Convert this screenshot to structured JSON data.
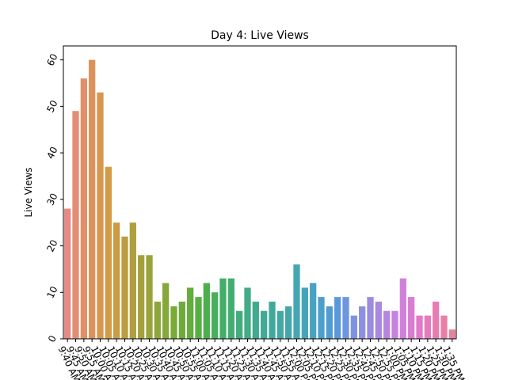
{
  "chart_data": {
    "type": "bar",
    "title": "Day 4: Live Views",
    "xlabel": "",
    "ylabel": "Live Views",
    "ylim": [
      0,
      63
    ],
    "yticks": [
      0,
      10,
      20,
      30,
      40,
      50,
      60
    ],
    "grid": false,
    "legend": "none",
    "categories": [
      "9:40 AM",
      "9:45 AM",
      "9:50 AM",
      "9:55 AM",
      "10:00 AM",
      "10:05 AM",
      "10:10 AM",
      "10:15 AM",
      "10:20 AM",
      "10:25 AM",
      "10:30 AM",
      "10:35 AM",
      "10:40 AM",
      "10:45 AM",
      "10:50 AM",
      "10:55 AM",
      "11:00 AM",
      "11:05 AM",
      "11:10 AM",
      "11:15 AM",
      "11:20 AM",
      "11:25 AM",
      "11:30 AM",
      "11:35 AM",
      "11:40 AM",
      "11:45 AM",
      "11:50 AM",
      "11:55 AM",
      "12:00 PM",
      "12:05 PM",
      "12:10 PM",
      "12:15 PM",
      "12:20 PM",
      "12:25 PM",
      "12:30 PM",
      "12:35 PM",
      "12:40 PM",
      "12:45 PM",
      "12:50 PM",
      "12:55 PM",
      "1:00 PM",
      "1:05 PM",
      "1:10 PM",
      "1:15 PM",
      "1:20 PM",
      "1:25 PM",
      "1:30 PM",
      "1:35 PM"
    ],
    "values": [
      28,
      49,
      56,
      60,
      53,
      37,
      25,
      22,
      25,
      18,
      18,
      8,
      12,
      7,
      8,
      11,
      9,
      12,
      10,
      13,
      13,
      6,
      11,
      8,
      6,
      8,
      6,
      7,
      16,
      11,
      12,
      9,
      7,
      9,
      9,
      5,
      7,
      9,
      8,
      6,
      6,
      13,
      9,
      5,
      5,
      8,
      5,
      2
    ],
    "colors": [
      "#e58a86",
      "#e28e76",
      "#df9068",
      "#dc935b",
      "#d8964f",
      "#d49a45",
      "#c99b44",
      "#bb9e42",
      "#ae9f3f",
      "#a4a13d",
      "#98a43b",
      "#8fa63a",
      "#85a83a",
      "#7aaa3a",
      "#6fab3b",
      "#62ad3d",
      "#57af43",
      "#4daf4c",
      "#47ae5c",
      "#44ad6a",
      "#43ad74",
      "#42ac7e",
      "#42ab87",
      "#41aa8e",
      "#41a995",
      "#41a89c",
      "#42a8a3",
      "#43a7aa",
      "#44a6b1",
      "#46a4b9",
      "#48a2c1",
      "#4b9fc9",
      "#509cd1",
      "#5999db",
      "#6c96e0",
      "#7f92e2",
      "#8d8fe3",
      "#9b8be3",
      "#a888e3",
      "#b685e2",
      "#c582df",
      "#d07fdb",
      "#d97cd2",
      "#e07ac7",
      "#e47bbd",
      "#e67cb2",
      "#e77fa7",
      "#e7829b"
    ]
  }
}
